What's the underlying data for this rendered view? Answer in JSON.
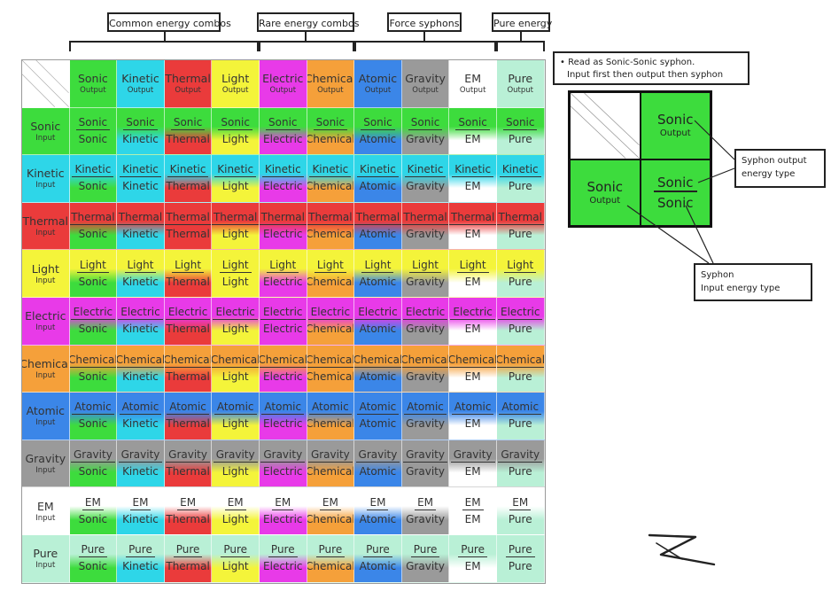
{
  "groups": [
    {
      "label": "Common energy combos"
    },
    {
      "label": "Rare energy combos"
    },
    {
      "label": "Force syphons"
    },
    {
      "label": "Pure energy"
    }
  ],
  "energies": [
    {
      "name": "Sonic",
      "color": "#3ddc3d"
    },
    {
      "name": "Kinetic",
      "color": "#2ed6e8"
    },
    {
      "name": "Thermal",
      "color": "#ea3b3b"
    },
    {
      "name": "Light",
      "color": "#f4f43a"
    },
    {
      "name": "Electric",
      "color": "#e83ae8"
    },
    {
      "name": "Chemical",
      "color": "#f5a03a"
    },
    {
      "name": "Atomic",
      "color": "#3b86e8"
    },
    {
      "name": "Gravity",
      "color": "#9a9a9a"
    },
    {
      "name": "EM",
      "color": "#ffffff"
    },
    {
      "name": "Pure",
      "color": "#b9f0d6"
    }
  ],
  "header_suffix": "Output",
  "row_suffix": "Input",
  "legend": {
    "note_line1": "• Read as Sonic-Sonic syphon.",
    "note_line2": "Input first then output then syphon",
    "ex_output_name": "Sonic",
    "ex_output_sub": "Output",
    "ex_input_name": "Sonic",
    "ex_input_sub": "Output",
    "ex_combo_top": "Sonic",
    "ex_combo_bottom": "Sonic",
    "callout_output_line1": "Syphon output",
    "callout_output_line2": "energy type",
    "callout_input_line1": "Syphon",
    "callout_input_line2": "Input energy type"
  }
}
